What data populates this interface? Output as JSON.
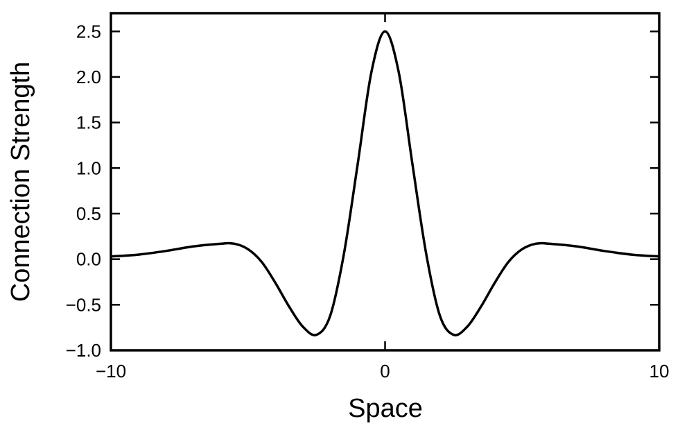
{
  "chart_data": {
    "type": "line",
    "title": "",
    "xlabel": "Space",
    "ylabel": "Connection Strength",
    "xlim": [
      -10,
      10
    ],
    "ylim": [
      -1.0,
      2.7
    ],
    "grid": false,
    "legend": "none",
    "line_color": "#000000",
    "x_ticks": [
      -10,
      0,
      10
    ],
    "x_tick_labels": [
      "−10",
      "0",
      "10"
    ],
    "y_ticks": [
      -1.0,
      -0.5,
      0.0,
      0.5,
      1.0,
      1.5,
      2.0,
      2.5
    ],
    "y_tick_labels": [
      "−1.0",
      "−0.5",
      "0.0",
      "0.5",
      "1.0",
      "1.5",
      "2.0",
      "2.5"
    ],
    "series": [
      {
        "x": [
          -10,
          -9,
          -8,
          -7,
          -6,
          -5.5,
          -5,
          -4.5,
          -4,
          -3.5,
          -3,
          -2.5,
          -2,
          -1.5,
          -1,
          -0.5,
          0,
          0.5,
          1,
          1.5,
          2,
          2.5,
          3,
          3.5,
          4,
          4.5,
          5,
          5.5,
          6,
          7,
          8,
          9,
          10
        ],
        "y": [
          0.03,
          0.05,
          0.09,
          0.14,
          0.17,
          0.17,
          0.11,
          -0.03,
          -0.26,
          -0.52,
          -0.74,
          -0.83,
          -0.62,
          0.06,
          1.04,
          2.05,
          2.5,
          2.05,
          1.04,
          0.06,
          -0.62,
          -0.83,
          -0.74,
          -0.52,
          -0.26,
          -0.03,
          0.11,
          0.17,
          0.17,
          0.14,
          0.09,
          0.05,
          0.03
        ]
      }
    ]
  }
}
